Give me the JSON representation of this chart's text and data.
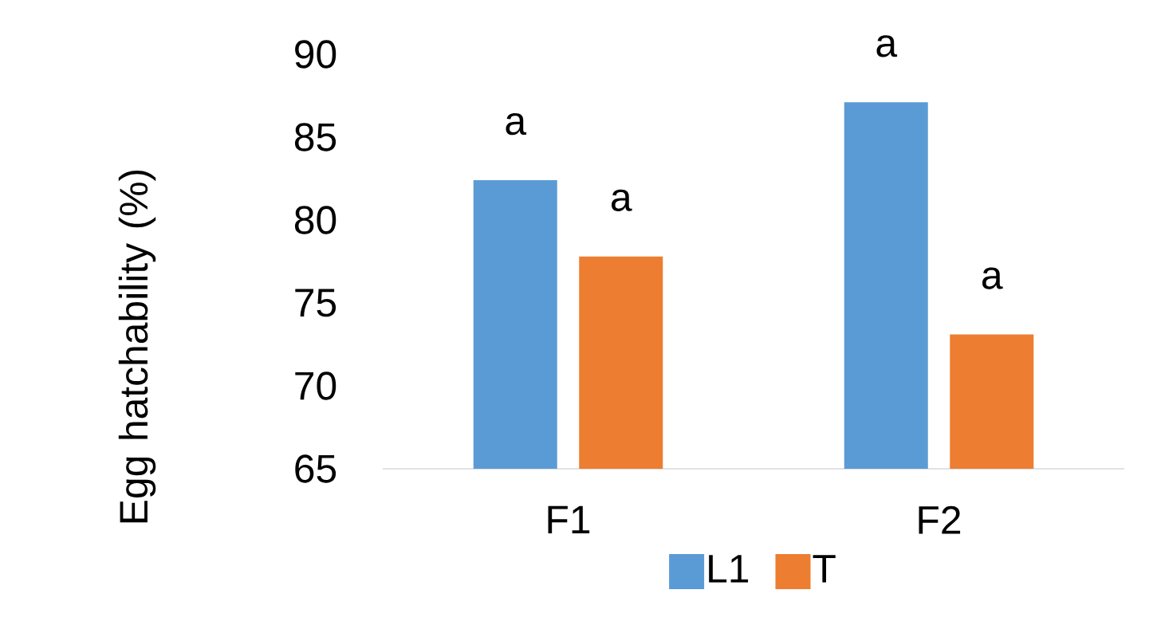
{
  "chart_data": {
    "type": "bar",
    "ylabel": "Egg hatchability (%)",
    "categories": [
      "F1",
      "F2"
    ],
    "series": [
      {
        "name": "L1",
        "color": "#5b9bd5",
        "values": [
          82.4,
          87.1
        ]
      },
      {
        "name": "T",
        "color": "#ed7d31",
        "values": [
          77.8,
          73.1
        ]
      }
    ],
    "ylim": [
      65,
      90
    ],
    "yticks": [
      65,
      70,
      75,
      80,
      85,
      90
    ],
    "legend": "bottom",
    "annotations": [
      "a",
      "a",
      "a",
      "a"
    ]
  }
}
